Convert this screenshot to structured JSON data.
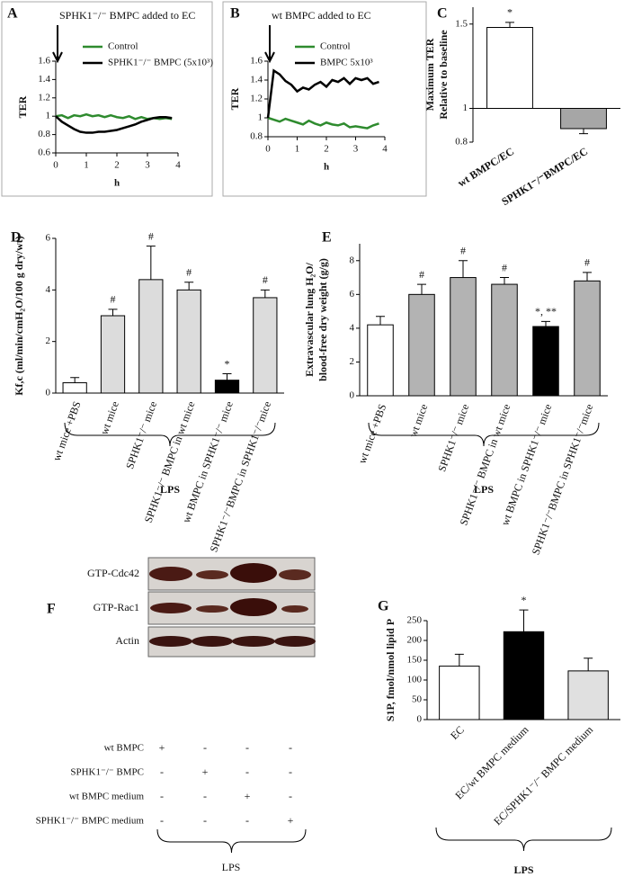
{
  "chart_data": [
    {
      "type": "line",
      "panel": "A",
      "annotation": "SPHK1⁻/⁻ BMPC added to EC",
      "y_label": "TER",
      "x_label": "h",
      "xlim": [
        0,
        4
      ],
      "xticks": [
        0,
        1,
        2,
        3,
        4
      ],
      "ylim": [
        0.6,
        1.6
      ],
      "yticks": [
        0.6,
        0.8,
        1,
        1.2,
        1.4,
        1.6
      ],
      "series": [
        {
          "name": "Control",
          "color": "#2e8b2e",
          "x": [
            0,
            0.2,
            0.4,
            0.6,
            0.8,
            1,
            1.2,
            1.4,
            1.6,
            1.8,
            2,
            2.2,
            2.4,
            2.6,
            2.8,
            3,
            3.2,
            3.4,
            3.6,
            3.8
          ],
          "values": [
            1,
            1.01,
            0.98,
            1.01,
            1.0,
            1.02,
            1.0,
            1.01,
            0.99,
            1.01,
            0.99,
            0.98,
            1.0,
            0.97,
            0.99,
            0.97,
            0.98,
            0.97,
            0.98,
            0.97
          ]
        },
        {
          "name": "SPHK1⁻/⁻ BMPC (5x10³)",
          "color": "#000000",
          "x": [
            0,
            0.2,
            0.4,
            0.6,
            0.8,
            1,
            1.2,
            1.4,
            1.6,
            1.8,
            2,
            2.2,
            2.4,
            2.6,
            2.8,
            3,
            3.2,
            3.4,
            3.6,
            3.8
          ],
          "values": [
            1,
            0.94,
            0.9,
            0.86,
            0.83,
            0.82,
            0.82,
            0.83,
            0.83,
            0.84,
            0.85,
            0.87,
            0.89,
            0.91,
            0.94,
            0.96,
            0.98,
            0.99,
            0.99,
            0.98
          ]
        }
      ]
    },
    {
      "type": "line",
      "panel": "B",
      "annotation": "wt BMPC added to EC",
      "y_label": "TER",
      "x_label": "h",
      "xlim": [
        0,
        4
      ],
      "xticks": [
        0,
        1,
        2,
        3,
        4
      ],
      "ylim": [
        0.8,
        1.6
      ],
      "yticks": [
        0.8,
        1,
        1.2,
        1.4,
        1.6
      ],
      "series": [
        {
          "name": "Control",
          "color": "#2e8b2e",
          "x": [
            0,
            0.2,
            0.4,
            0.6,
            0.8,
            1,
            1.2,
            1.4,
            1.6,
            1.8,
            2,
            2.2,
            2.4,
            2.6,
            2.8,
            3,
            3.2,
            3.4,
            3.6,
            3.8
          ],
          "values": [
            1,
            0.98,
            0.96,
            0.99,
            0.97,
            0.95,
            0.93,
            0.97,
            0.94,
            0.92,
            0.95,
            0.93,
            0.92,
            0.94,
            0.9,
            0.91,
            0.9,
            0.89,
            0.92,
            0.94
          ]
        },
        {
          "name": "BMPC 5x10³",
          "color": "#000000",
          "x": [
            0,
            0.2,
            0.4,
            0.6,
            0.8,
            1,
            1.2,
            1.4,
            1.6,
            1.8,
            2,
            2.2,
            2.4,
            2.6,
            2.8,
            3,
            3.2,
            3.4,
            3.6,
            3.8
          ],
          "values": [
            1,
            1.5,
            1.46,
            1.39,
            1.35,
            1.28,
            1.32,
            1.3,
            1.35,
            1.38,
            1.33,
            1.4,
            1.38,
            1.42,
            1.36,
            1.42,
            1.4,
            1.42,
            1.36,
            1.38
          ]
        }
      ]
    },
    {
      "type": "bar",
      "panel": "C",
      "y_label": [
        "Maximum TER",
        "Relative to baseline"
      ],
      "baseline": 1,
      "categories": [
        "wt BMPC/EC",
        "SPHK1⁻/⁻BMPC/EC"
      ],
      "values": [
        1.48,
        0.88
      ],
      "errors": [
        0.03,
        0.03
      ],
      "colors": [
        "#ffffff",
        "#a6a6a6"
      ],
      "annotations": [
        "*",
        null
      ],
      "ylim": [
        0.8,
        1.6
      ],
      "yticks": [
        0.8,
        1,
        1.5
      ]
    },
    {
      "type": "bar",
      "panel": "D",
      "y_label": [
        "Kf,c (ml/min/cmH₂O/100 g dry/wt)"
      ],
      "baseline": 0,
      "group": "LPS",
      "categories": [
        "wt mice +PBS",
        "wt mice",
        "SPHK1⁻/⁻ mice",
        "SPHK1⁻/⁻ BMPC in wt mice",
        "wt BMPC in SPHK1⁻/⁻ mice",
        "SPHK1⁻/⁻BMPC in SPHK1⁻/⁻mice"
      ],
      "values": [
        0.4,
        3.0,
        4.4,
        4.0,
        0.5,
        3.7
      ],
      "errors": [
        0.2,
        0.25,
        1.3,
        0.3,
        0.25,
        0.3
      ],
      "colors": [
        "#ffffff",
        "#dcdcdc",
        "#dcdcdc",
        "#dcdcdc",
        "#000000",
        "#dcdcdc"
      ],
      "annotations": [
        null,
        "#",
        "#",
        "#",
        "*",
        "#"
      ],
      "ylim": [
        0,
        6
      ],
      "yticks": [
        0,
        2,
        4,
        6
      ]
    },
    {
      "type": "bar",
      "panel": "E",
      "y_label": [
        "Extravascular lung H₂O/",
        "blood-free dry weight (g/g)"
      ],
      "baseline": 0,
      "group": "LPS",
      "categories": [
        "wt mice +PBS",
        "wt mice",
        "SPHK1⁻/⁻ mice",
        "SPHK1⁻/⁻ BMPC in wt mice",
        "wt BMPC in SPHK1⁻/⁻ mice",
        "SPHK1⁻/⁻BMPC in SPHK1⁻/⁻mice"
      ],
      "values": [
        4.2,
        6.0,
        7.0,
        6.6,
        4.1,
        6.8
      ],
      "errors": [
        0.5,
        0.6,
        1.0,
        0.4,
        0.3,
        0.5
      ],
      "colors": [
        "#ffffff",
        "#b3b3b3",
        "#b3b3b3",
        "#b3b3b3",
        "#000000",
        "#b3b3b3"
      ],
      "annotations": [
        null,
        "#",
        "#",
        "#",
        "*, **",
        "#"
      ],
      "ylim": [
        0,
        9
      ],
      "yticks": [
        0,
        2,
        4,
        6,
        8
      ]
    },
    {
      "type": "bar",
      "panel": "G",
      "y_label": [
        "S1P, fmol/nmol lipid P"
      ],
      "baseline": 0,
      "group": "LPS",
      "categories": [
        "EC",
        "EC/wt BMPC medium",
        "EC/SPHK1⁻/⁻ BMPC medium"
      ],
      "values": [
        135,
        222,
        123
      ],
      "errors": [
        30,
        55,
        32
      ],
      "colors": [
        "#ffffff",
        "#000000",
        "#e0e0e0"
      ],
      "annotations": [
        null,
        "*",
        null
      ],
      "ylim": [
        0,
        250
      ],
      "yticks": [
        0,
        50,
        100,
        150,
        200,
        250
      ]
    }
  ],
  "blot": {
    "panel": "F",
    "rows": [
      "GTP-Cdc42",
      "GTP-Rac1",
      "Actin"
    ],
    "conditions": [
      {
        "name": "wt BMPC",
        "marks": [
          "+",
          "-",
          "-",
          "-"
        ]
      },
      {
        "name": "SPHK1⁻/⁻ BMPC",
        "marks": [
          "-",
          "+",
          "-",
          "-"
        ]
      },
      {
        "name": "wt BMPC medium",
        "marks": [
          "-",
          "-",
          "+",
          "-"
        ]
      },
      {
        "name": "SPHK1⁻/⁻ BMPC medium",
        "marks": [
          "-",
          "-",
          "-",
          "+"
        ]
      }
    ],
    "group": "LPS"
  }
}
